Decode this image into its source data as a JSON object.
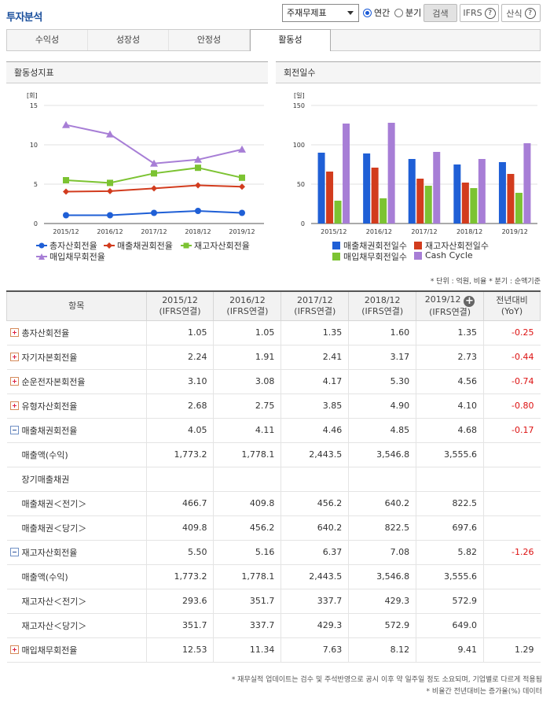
{
  "header": {
    "title": "투자분석",
    "statement_select": "주재무제표",
    "period_options": [
      {
        "label": "연간",
        "selected": true
      },
      {
        "label": "분기",
        "selected": false
      }
    ],
    "search_label": "검색",
    "ifrs_label": "IFRS",
    "formula_label": "산식",
    "help_icon": "?"
  },
  "tabs": [
    {
      "label": "수익성",
      "active": false
    },
    {
      "label": "성장성",
      "active": false
    },
    {
      "label": "안정성",
      "active": false
    },
    {
      "label": "활동성",
      "active": true
    }
  ],
  "charts": {
    "left_title": "활동성지표",
    "right_title": "회전일수"
  },
  "chart_data": [
    {
      "type": "line",
      "unit": "[회]",
      "categories": [
        "2015/12",
        "2016/12",
        "2017/12",
        "2018/12",
        "2019/12"
      ],
      "ylim": [
        0,
        15
      ],
      "yticks": [
        "0",
        "5",
        "10",
        "15"
      ],
      "series": [
        {
          "name": "총자산회전율",
          "color": "#1f5fd6",
          "marker": "circle",
          "values": [
            1.05,
            1.05,
            1.35,
            1.6,
            1.35
          ]
        },
        {
          "name": "매출채권회전율",
          "color": "#d23c1e",
          "marker": "diamond",
          "values": [
            4.05,
            4.11,
            4.46,
            4.85,
            4.68
          ]
        },
        {
          "name": "재고자산회전율",
          "color": "#7cc332",
          "marker": "square",
          "values": [
            5.5,
            5.16,
            6.37,
            7.08,
            5.82
          ]
        },
        {
          "name": "매입채무회전율",
          "color": "#a77ed6",
          "marker": "triangle",
          "values": [
            12.53,
            11.34,
            7.63,
            8.12,
            9.41
          ]
        }
      ],
      "legend": "bottom"
    },
    {
      "type": "bar",
      "unit": "[일]",
      "categories": [
        "2015/12",
        "2016/12",
        "2017/12",
        "2018/12",
        "2019/12"
      ],
      "ylim": [
        0,
        150
      ],
      "yticks": [
        "0",
        "50",
        "100",
        "150"
      ],
      "series": [
        {
          "name": "매출채권회전일수",
          "color": "#1f5fd6",
          "values": [
            90,
            89,
            82,
            75,
            78
          ]
        },
        {
          "name": "재고자산회전일수",
          "color": "#d23c1e",
          "values": [
            66,
            71,
            57,
            52,
            63
          ]
        },
        {
          "name": "매입채무회전일수",
          "color": "#7cc332",
          "values": [
            29,
            32,
            48,
            45,
            39
          ]
        },
        {
          "name": "Cash Cycle",
          "color": "#a77ed6",
          "values": [
            127,
            128,
            91,
            82,
            102
          ]
        }
      ],
      "legend": "bottom"
    }
  ],
  "unit_note": "* 단위 : 억원, 비율   * 분기 : 순액기준",
  "table": {
    "headers": {
      "item": "항목",
      "cols": [
        {
          "year": "2015/12",
          "basis": "(IFRS연결)"
        },
        {
          "year": "2016/12",
          "basis": "(IFRS연결)"
        },
        {
          "year": "2017/12",
          "basis": "(IFRS연결)"
        },
        {
          "year": "2018/12",
          "basis": "(IFRS연결)"
        },
        {
          "year": "2019/12",
          "basis": "(IFRS연결)"
        }
      ],
      "yoy_line1": "전년대비",
      "yoy_line2": "(YoY)"
    },
    "rows": [
      {
        "label": "총자산회전율",
        "exp": "plus",
        "v": [
          "1.05",
          "1.05",
          "1.35",
          "1.60",
          "1.35"
        ],
        "yoy": "-0.25"
      },
      {
        "label": "자기자본회전율",
        "exp": "plus",
        "v": [
          "2.24",
          "1.91",
          "2.41",
          "3.17",
          "2.73"
        ],
        "yoy": "-0.44"
      },
      {
        "label": "순운전자본회전율",
        "exp": "plus",
        "v": [
          "3.10",
          "3.08",
          "4.17",
          "5.30",
          "4.56"
        ],
        "yoy": "-0.74"
      },
      {
        "label": "유형자산회전율",
        "exp": "plus",
        "v": [
          "2.68",
          "2.75",
          "3.85",
          "4.90",
          "4.10"
        ],
        "yoy": "-0.80"
      },
      {
        "label": "매출채권회전율",
        "exp": "minus",
        "v": [
          "4.05",
          "4.11",
          "4.46",
          "4.85",
          "4.68"
        ],
        "yoy": "-0.17"
      },
      {
        "label": "매출액(수익)",
        "exp": "",
        "v": [
          "1,773.2",
          "1,778.1",
          "2,443.5",
          "3,546.8",
          "3,555.6"
        ],
        "yoy": ""
      },
      {
        "label": "장기매출채권",
        "exp": "",
        "v": [
          "",
          "",
          "",
          "",
          ""
        ],
        "yoy": ""
      },
      {
        "label": "매출채권＜전기＞",
        "exp": "",
        "v": [
          "466.7",
          "409.8",
          "456.2",
          "640.2",
          "822.5"
        ],
        "yoy": ""
      },
      {
        "label": "매출채권＜당기＞",
        "exp": "",
        "v": [
          "409.8",
          "456.2",
          "640.2",
          "822.5",
          "697.6"
        ],
        "yoy": ""
      },
      {
        "label": "재고자산회전율",
        "exp": "minus",
        "v": [
          "5.50",
          "5.16",
          "6.37",
          "7.08",
          "5.82"
        ],
        "yoy": "-1.26"
      },
      {
        "label": "매출액(수익)",
        "exp": "",
        "v": [
          "1,773.2",
          "1,778.1",
          "2,443.5",
          "3,546.8",
          "3,555.6"
        ],
        "yoy": ""
      },
      {
        "label": "재고자산＜전기＞",
        "exp": "",
        "v": [
          "293.6",
          "351.7",
          "337.7",
          "429.3",
          "572.9"
        ],
        "yoy": ""
      },
      {
        "label": "재고자산＜당기＞",
        "exp": "",
        "v": [
          "351.7",
          "337.7",
          "429.3",
          "572.9",
          "649.0"
        ],
        "yoy": ""
      },
      {
        "label": "매입채무회전율",
        "exp": "plus",
        "v": [
          "12.53",
          "11.34",
          "7.63",
          "8.12",
          "9.41"
        ],
        "yoy": "1.29"
      }
    ]
  },
  "footnotes": [
    "* 재무실적 업데이트는 검수 및 주석반영으로 공시 이후 약 일주일 정도 소요되며, 기업별로 다르게 적용됨",
    "* 비율간 전년대비는 증가율(%) 데이터"
  ]
}
